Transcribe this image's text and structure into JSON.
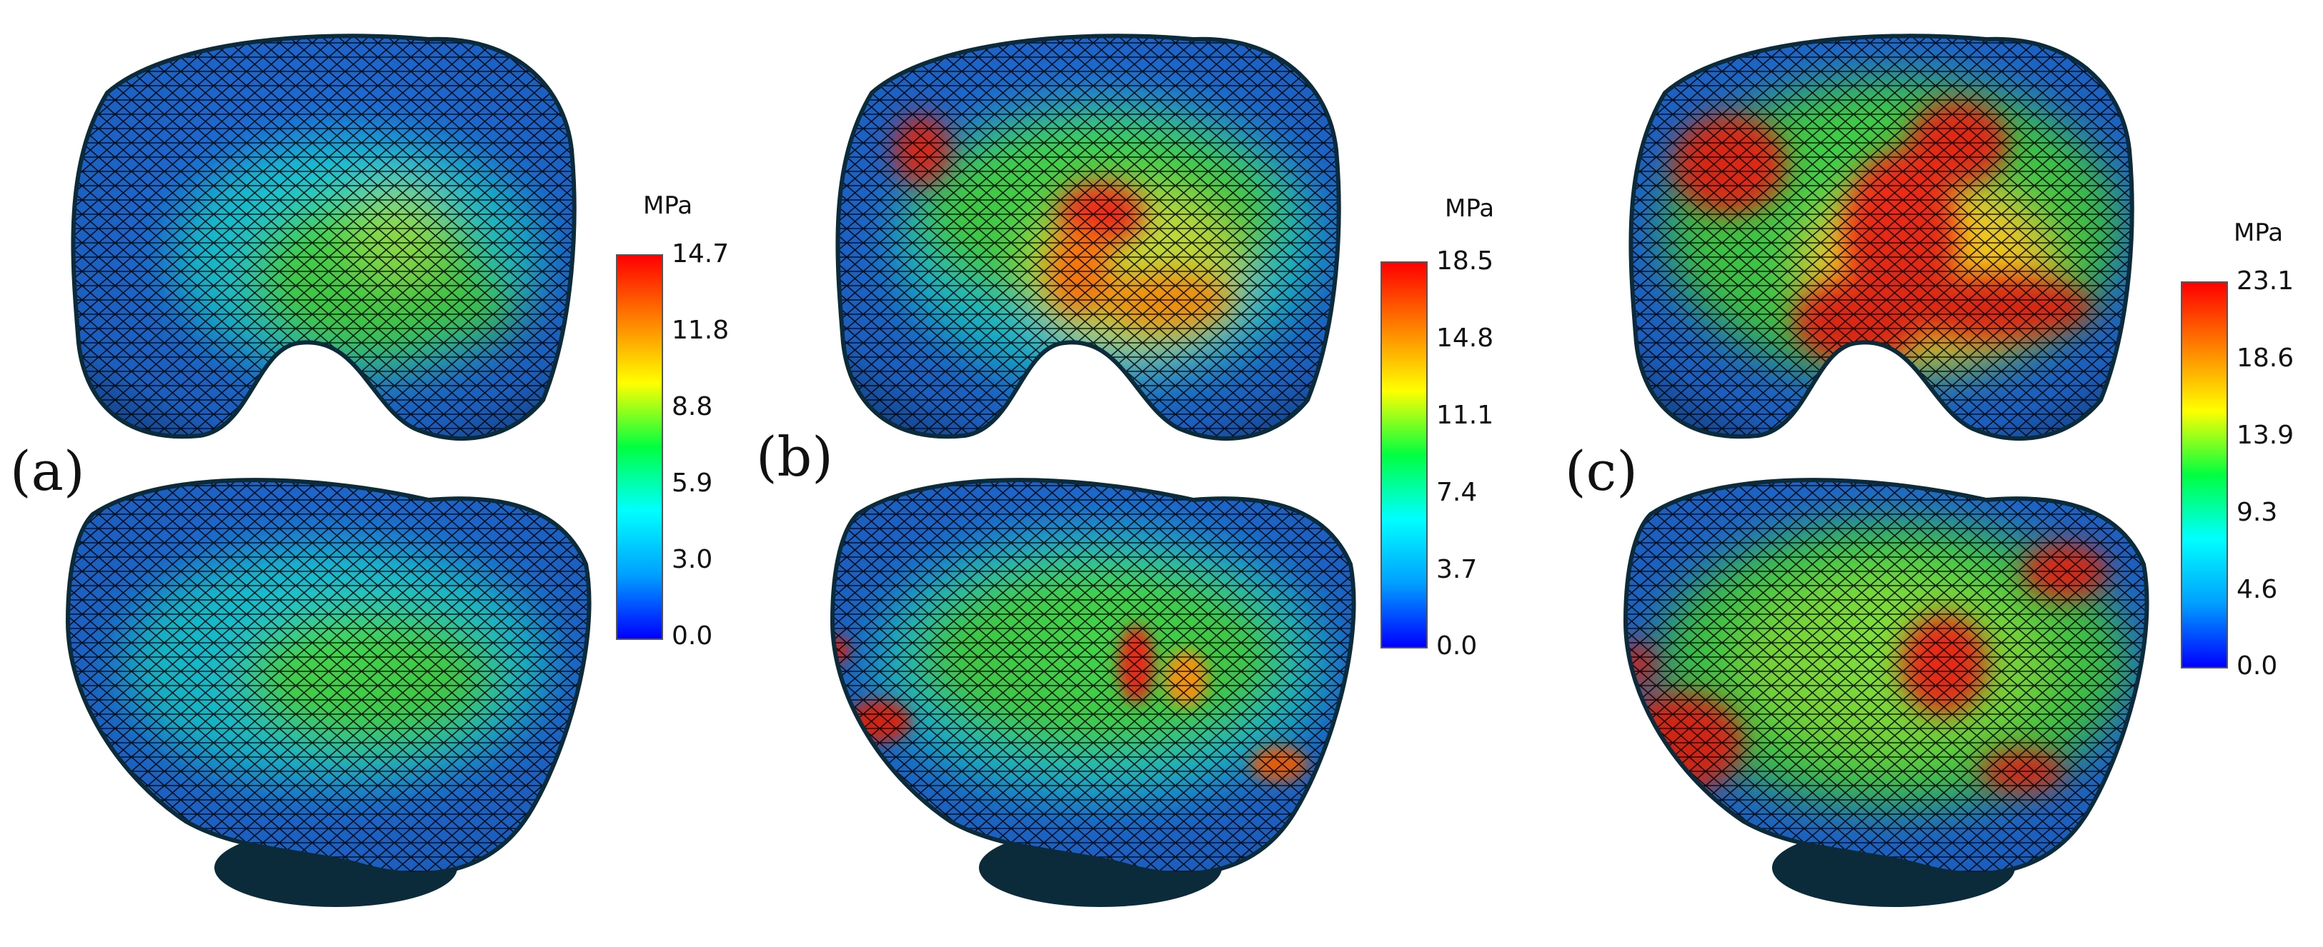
{
  "figure": {
    "unit": "MPa",
    "panels": [
      {
        "label": "(a)",
        "ticks": [
          "14.7",
          "11.8",
          "8.8",
          "5.9",
          "3.0",
          "0.0"
        ]
      },
      {
        "label": "(b)",
        "ticks": [
          "18.5",
          "14.8",
          "11.1",
          "7.4",
          "3.7",
          "0.0"
        ]
      },
      {
        "label": "(c)",
        "ticks": [
          "23.1",
          "18.6",
          "13.9",
          "9.3",
          "4.6",
          "0.0"
        ]
      }
    ],
    "colormap": [
      "#0000ff",
      "#00a0ff",
      "#00ffff",
      "#00ff40",
      "#ffff00",
      "#ff8000",
      "#ff0000"
    ],
    "surface_colors": {
      "base_blue": "#1f6fe0",
      "mid_cyan": "#19c6d8",
      "mid_green": "#42d44a",
      "hot_red": "#ee2b12",
      "shadow": "#0b2a3a",
      "mesh": "#000000"
    }
  }
}
